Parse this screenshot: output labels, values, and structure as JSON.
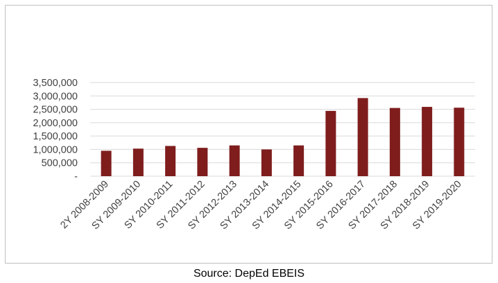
{
  "chart_data": {
    "type": "bar",
    "categories": [
      "2Y 2008-2009",
      "SY 2009-2010",
      "SY 2010-2011",
      "SY 2011-2012",
      "SY 2012-2013",
      "SY 2013-2014",
      "SY 2014-2015",
      "SY 2015-2016",
      "SY 2016-2017",
      "SY 2017-2018",
      "SY 2018-2019",
      "SY 2019-2020"
    ],
    "values": [
      950000,
      1030000,
      1130000,
      1060000,
      1150000,
      1000000,
      1150000,
      2440000,
      2920000,
      2550000,
      2590000,
      2560000
    ],
    "y_ticks": [
      "-",
      "500,000",
      "1,000,000",
      "1,500,000",
      "2,000,000",
      "2,500,000",
      "3,000,000",
      "3,500,000"
    ],
    "ylim": [
      0,
      3500000
    ],
    "grid": true,
    "bar_color": "#7f1d1d",
    "title": "",
    "xlabel": "",
    "ylabel": ""
  },
  "source": "Source: DepEd EBEIS"
}
